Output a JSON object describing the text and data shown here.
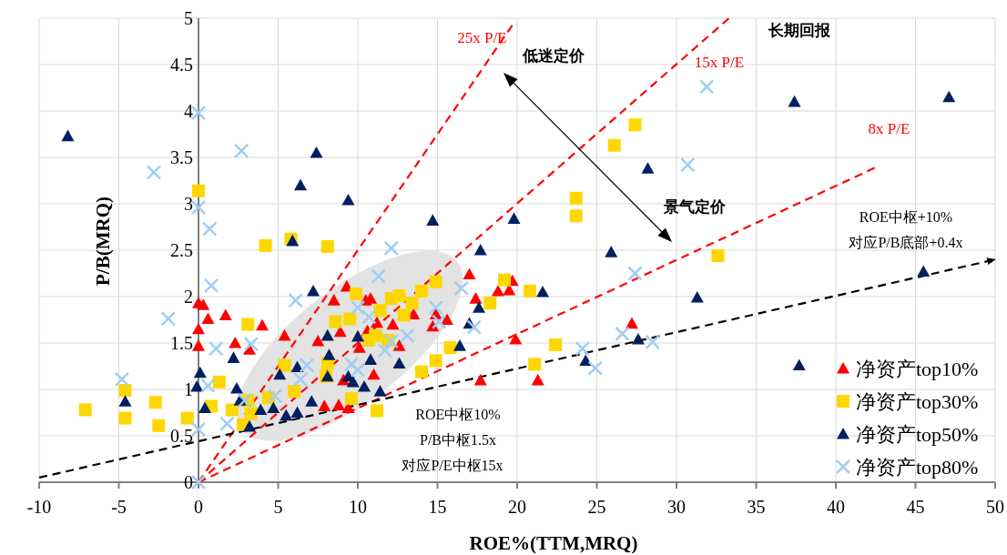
{
  "chart_data": {
    "type": "scatter",
    "xlabel": "ROE%(TTM,MRQ)",
    "ylabel": "P/B(MRQ)",
    "xlim": [
      -10,
      50
    ],
    "ylim": [
      0,
      5
    ],
    "xticks": [
      -10,
      -5,
      0,
      5,
      10,
      15,
      20,
      25,
      30,
      35,
      40,
      45,
      50
    ],
    "yticks": [
      0,
      0.5,
      1,
      1.5,
      2,
      2.5,
      3,
      3.5,
      4,
      4.5,
      5
    ],
    "grid": true,
    "legend": "bottom right",
    "annotations": [
      "低迷定价",
      "景气定价",
      "长期回报",
      "ROE中枢+10%",
      "对应P/B底部+0.4x",
      "ROE中枢10%",
      "P/B中枢1.5x",
      "对应P/E中枢15x"
    ],
    "series": [
      {
        "name": "净资产top10%",
        "color": "#ff0000",
        "marker": "triangle",
        "x": [
          0,
          0.3,
          0.6,
          0,
          0,
          1.7,
          2.3,
          3.2,
          4,
          5.4,
          7.5,
          8.5,
          9.3,
          10.5,
          10.8,
          8.9,
          11.2,
          12.2,
          13.5,
          10.6,
          10.1,
          12.6,
          11,
          9.1,
          14.9,
          14.7,
          15.6,
          17,
          17.4,
          17.7,
          7.9,
          8.8,
          9.4,
          19.7,
          19.5,
          18.8,
          19.9,
          21.3,
          27.2
        ],
        "values": [
          1.93,
          1.91,
          1.76,
          1.65,
          1.47,
          1.8,
          1.5,
          1.43,
          1.69,
          1.58,
          1.52,
          1.96,
          2.11,
          1.96,
          1.98,
          1.62,
          1.72,
          1.7,
          1.81,
          1.63,
          1.45,
          1.47,
          1.16,
          1.1,
          1.81,
          1.68,
          1.75,
          2.24,
          1.98,
          1.1,
          0.82,
          0.83,
          0.8,
          2.17,
          2.07,
          2.06,
          1.54,
          1.1,
          1.71
        ]
      },
      {
        "name": "净资产top30%",
        "color": "#ffd700",
        "marker": "square",
        "x": [
          -7.1,
          -4.6,
          -4.6,
          -2.7,
          -2.5,
          -0.7,
          0,
          0.8,
          1.3,
          2.1,
          3.1,
          4.2,
          5.8,
          8.1,
          2.8,
          3.1,
          3.3,
          4.4,
          5.4,
          6,
          8.1,
          8,
          8.6,
          9.9,
          12.1,
          12.6,
          14,
          14.9,
          13.4,
          12.9,
          11.4,
          9.5,
          10.7,
          11.1,
          11.9,
          9.6,
          11.2,
          14,
          14.9,
          15.8,
          19.2,
          20.8,
          18.3,
          22.4,
          21.1,
          32.6,
          27.4,
          26.1,
          23.7,
          23.7
        ],
        "values": [
          0.78,
          0.99,
          0.69,
          0.86,
          0.61,
          0.69,
          3.14,
          0.82,
          1.08,
          0.78,
          1.7,
          2.55,
          2.62,
          2.54,
          0.62,
          0.88,
          0.74,
          0.91,
          1.26,
          0.98,
          1.28,
          1.14,
          1.73,
          2.03,
          1.98,
          2.01,
          2.06,
          2.16,
          1.93,
          1.8,
          1.85,
          1.76,
          1.53,
          1.58,
          1.53,
          0.9,
          0.77,
          1.19,
          1.31,
          1.45,
          2.18,
          2.06,
          1.93,
          1.48,
          1.27,
          2.44,
          3.85,
          3.63,
          3.06,
          2.87
        ]
      },
      {
        "name": "净资产top50%",
        "color": "#002060",
        "marker": "triangle",
        "x": [
          -8.2,
          -4.6,
          -0.1,
          0.1,
          0.4,
          6.4,
          7.4,
          5.9,
          7.2,
          2.2,
          2.4,
          2.6,
          3.2,
          3.9,
          4.7,
          5.1,
          5.5,
          6.2,
          7.1,
          8.1,
          8.2,
          8.1,
          6.2,
          10,
          9.4,
          9.7,
          10.4,
          10.8,
          12.6,
          11.4,
          17.7,
          17.6,
          17,
          16.4,
          21.6,
          25.9,
          31.3,
          24.3,
          27.6,
          9.4,
          14.7,
          19.8,
          28.2,
          37.4,
          47.1,
          45.5,
          37.7
        ],
        "values": [
          3.73,
          0.87,
          1.03,
          1.18,
          0.8,
          3.2,
          3.55,
          2.6,
          2.06,
          1.34,
          1.01,
          0.88,
          0.6,
          0.78,
          0.8,
          1.16,
          0.72,
          0.75,
          0.87,
          1.14,
          1.37,
          1.58,
          1.24,
          1.57,
          1.14,
          1.08,
          1.03,
          1.32,
          1.28,
          0.98,
          2.5,
          1.88,
          1.71,
          1.47,
          2.05,
          2.48,
          1.99,
          1.31,
          1.54,
          3.04,
          2.82,
          2.84,
          3.38,
          4.1,
          4.15,
          2.27,
          1.26
        ]
      },
      {
        "name": "净资产top80%",
        "color": "#9fcdf5",
        "marker": "cross",
        "x": [
          0,
          -2.8,
          2.7,
          0,
          0.7,
          0.8,
          -1.9,
          -4.8,
          1.1,
          3.3,
          0.6,
          0,
          1.8,
          0,
          2.9,
          6.1,
          6.8,
          6.4,
          4.8,
          12.1,
          11.3,
          10,
          10.7,
          14.9,
          15.1,
          13.1,
          12.1,
          11.7,
          9.6,
          10,
          16.5,
          17.3,
          27.4,
          26.6,
          24.1,
          24.9,
          28.5,
          31.9,
          30.7
        ],
        "values": [
          3.98,
          3.34,
          3.57,
          2.96,
          2.73,
          2.12,
          1.76,
          1.11,
          1.44,
          1.49,
          1.04,
          0.57,
          0.63,
          0,
          0.88,
          1.96,
          1.26,
          1.11,
          0.93,
          2.52,
          2.22,
          1.88,
          1.78,
          1.88,
          1.73,
          1.58,
          1.52,
          1.42,
          1.27,
          1.21,
          2.09,
          1.67,
          2.25,
          1.6,
          1.44,
          1.23,
          1.51,
          4.26,
          3.42
        ]
      },
      {
        "type": "line",
        "name": "25x P/E",
        "color": "#ff0000",
        "line_style": "dashed",
        "x": [
          0,
          19.8
        ],
        "values": [
          0,
          4.95
        ]
      },
      {
        "type": "line",
        "name": "15x P/E",
        "color": "#ff0000",
        "line_style": "dashed",
        "x": [
          0,
          33.3
        ],
        "values": [
          0,
          5
        ]
      },
      {
        "type": "line",
        "name": "8x P/E",
        "color": "#ff0000",
        "line_style": "dashed",
        "x": [
          0,
          42.6
        ],
        "values": [
          0,
          3.4
        ]
      },
      {
        "type": "line",
        "color": "#000000",
        "line_style": "dashed",
        "x": [
          -10,
          50
        ],
        "values": [
          0.05,
          2.4
        ]
      }
    ]
  }
}
